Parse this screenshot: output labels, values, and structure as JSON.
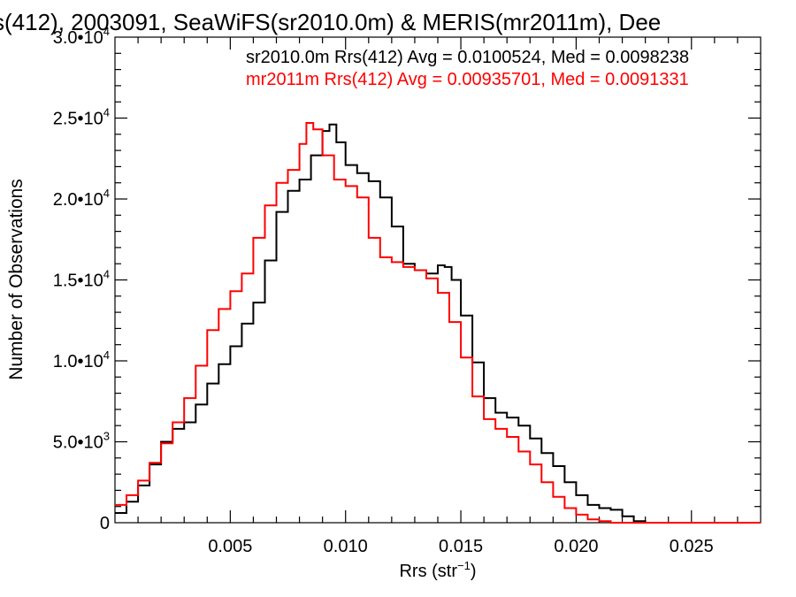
{
  "chart_data": {
    "type": "line",
    "title": "s(412), 2003091, SeaWiFS(sr2010.0m) & MERIS(mr2011m), Dee",
    "xlabel": "Rrs (str",
    "xlabel_sup": "−1",
    "xlabel_close": ")",
    "ylabel": "Number of Observations",
    "xlim": [
      0,
      0.028
    ],
    "ylim": [
      0,
      30000
    ],
    "x_ticks": [
      {
        "value": 0.005,
        "label": "0.005"
      },
      {
        "value": 0.01,
        "label": "0.010"
      },
      {
        "value": 0.015,
        "label": "0.015"
      },
      {
        "value": 0.02,
        "label": "0.020"
      },
      {
        "value": 0.025,
        "label": "0.025"
      }
    ],
    "y_ticks": [
      {
        "value": 0,
        "mant": "0",
        "exp": ""
      },
      {
        "value": 5000,
        "mant": "5.0•10",
        "exp": "3"
      },
      {
        "value": 10000,
        "mant": "1.0•10",
        "exp": "4"
      },
      {
        "value": 15000,
        "mant": "1.5•10",
        "exp": "4"
      },
      {
        "value": 20000,
        "mant": "2.0•10",
        "exp": "4"
      },
      {
        "value": 25000,
        "mant": "2.5•10",
        "exp": "4"
      },
      {
        "value": 30000,
        "mant": "3.0•10",
        "exp": "4"
      }
    ],
    "grid": false,
    "legend_position": "top-right",
    "series": [
      {
        "name": "sr2010.0m Rrs(412) Avg = 0.0100524, Med = 0.0098238",
        "color": "#000000",
        "x": [
          0.0,
          0.0005,
          0.001,
          0.0015,
          0.002,
          0.0025,
          0.003,
          0.0035,
          0.004,
          0.0045,
          0.005,
          0.0055,
          0.006,
          0.0065,
          0.007,
          0.0075,
          0.008,
          0.0085,
          0.009,
          0.0093,
          0.0096,
          0.01,
          0.0105,
          0.011,
          0.0115,
          0.012,
          0.0125,
          0.013,
          0.0135,
          0.014,
          0.0143,
          0.0146,
          0.015,
          0.0155,
          0.016,
          0.0165,
          0.017,
          0.0175,
          0.018,
          0.0185,
          0.019,
          0.0195,
          0.02,
          0.0205,
          0.021,
          0.0215,
          0.022,
          0.0225,
          0.023,
          0.024,
          0.025,
          0.026,
          0.027,
          0.028
        ],
        "values": [
          600,
          1300,
          2300,
          3600,
          5000,
          5800,
          6200,
          7300,
          8600,
          9800,
          10900,
          12300,
          13600,
          16200,
          19200,
          20500,
          21200,
          22700,
          24200,
          24600,
          23500,
          22100,
          21600,
          21100,
          20100,
          18300,
          16000,
          15600,
          15400,
          15900,
          15800,
          15000,
          12800,
          9900,
          7700,
          6800,
          6500,
          6000,
          5200,
          4300,
          3500,
          2500,
          1700,
          1100,
          900,
          800,
          400,
          100,
          0,
          0,
          0,
          0,
          0,
          0
        ]
      },
      {
        "name": "mr2011m Rrs(412) Avg = 0.00935701, Med = 0.0091331",
        "color": "#ff0000",
        "x": [
          0.0,
          0.0005,
          0.001,
          0.0015,
          0.002,
          0.0025,
          0.003,
          0.0035,
          0.004,
          0.0045,
          0.005,
          0.0055,
          0.006,
          0.0065,
          0.007,
          0.0075,
          0.008,
          0.0083,
          0.0086,
          0.009,
          0.0095,
          0.01,
          0.0105,
          0.011,
          0.0115,
          0.012,
          0.0125,
          0.013,
          0.0135,
          0.014,
          0.0145,
          0.015,
          0.0155,
          0.016,
          0.0165,
          0.017,
          0.0175,
          0.018,
          0.0185,
          0.019,
          0.0195,
          0.02,
          0.0205,
          0.021,
          0.0215,
          0.022,
          0.0225,
          0.023,
          0.024,
          0.025,
          0.026,
          0.027,
          0.028
        ],
        "values": [
          1100,
          1700,
          2600,
          3700,
          4900,
          6200,
          7700,
          9700,
          11900,
          13200,
          14300,
          15400,
          17600,
          19600,
          21000,
          21800,
          23400,
          24700,
          24300,
          22700,
          21200,
          20800,
          20100,
          17600,
          16400,
          16100,
          15800,
          15600,
          15100,
          14200,
          12400,
          10200,
          7800,
          6400,
          5800,
          5300,
          4400,
          3600,
          2500,
          1600,
          900,
          500,
          200,
          100,
          0,
          0,
          0,
          0,
          0,
          0,
          0,
          0,
          0
        ]
      }
    ]
  }
}
